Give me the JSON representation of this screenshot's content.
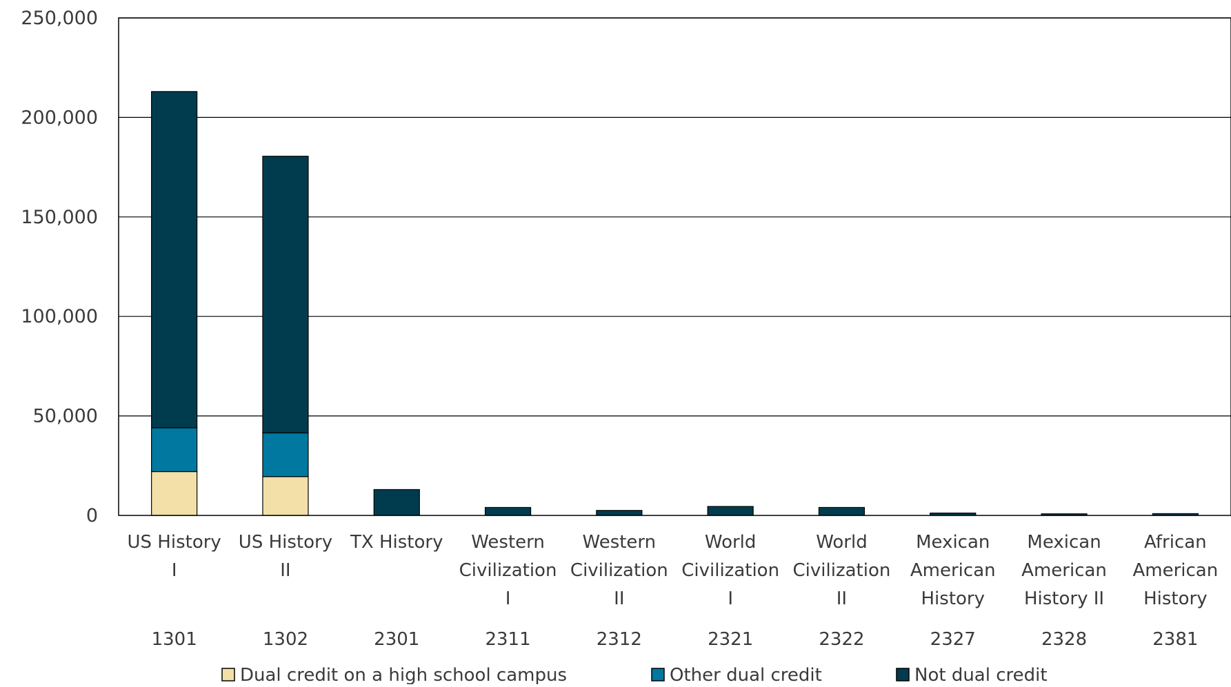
{
  "chart_data": {
    "type": "bar",
    "stacked": true,
    "categories": [
      {
        "name": [
          "US History",
          "I"
        ],
        "code": "1301"
      },
      {
        "name": [
          "US History",
          "II"
        ],
        "code": "1302"
      },
      {
        "name": [
          "TX History"
        ],
        "code": "2301"
      },
      {
        "name": [
          "Western",
          "Civilization",
          "I"
        ],
        "code": "2311"
      },
      {
        "name": [
          "Western",
          "Civilization",
          "II"
        ],
        "code": "2312"
      },
      {
        "name": [
          "World",
          "Civilization",
          "I"
        ],
        "code": "2321"
      },
      {
        "name": [
          "World",
          "Civilization",
          "II"
        ],
        "code": "2322"
      },
      {
        "name": [
          "Mexican",
          "American",
          "History"
        ],
        "code": "2327"
      },
      {
        "name": [
          "Mexican",
          "American",
          "History II"
        ],
        "code": "2328"
      },
      {
        "name": [
          "African",
          "American",
          "History"
        ],
        "code": "2381"
      }
    ],
    "series": [
      {
        "name": "Dual credit on a high school campus",
        "color": "#f3dfa8",
        "values": [
          22000,
          19500,
          0,
          0,
          0,
          0,
          0,
          0,
          0,
          0
        ]
      },
      {
        "name": "Other dual credit",
        "color": "#00789f",
        "values": [
          22000,
          22000,
          0,
          0,
          0,
          0,
          0,
          0,
          0,
          0
        ]
      },
      {
        "name": "Not dual credit",
        "color": "#003c4e",
        "values": [
          169000,
          139000,
          13000,
          4000,
          2500,
          4500,
          4000,
          1200,
          800,
          900
        ]
      }
    ],
    "ylim": [
      0,
      250000
    ],
    "yticks": [
      {
        "value": 0,
        "label": "0"
      },
      {
        "value": 50000,
        "label": "50,000"
      },
      {
        "value": 100000,
        "label": "100,000"
      },
      {
        "value": 150000,
        "label": "150,000"
      },
      {
        "value": 200000,
        "label": "200,000"
      },
      {
        "value": 250000,
        "label": "250,000"
      }
    ],
    "grid": true,
    "legend_position": "bottom",
    "title": "",
    "xlabel": "",
    "ylabel": ""
  }
}
